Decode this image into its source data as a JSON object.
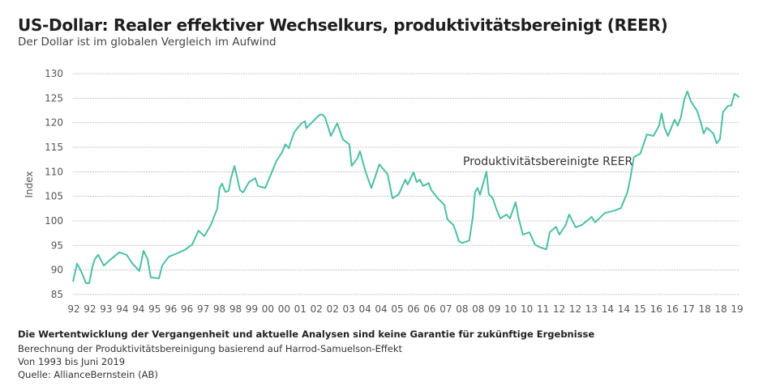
{
  "header": {
    "title": "US-Dollar: Realer effektiver Wechselkurs, produktivitätsbereinigt (REER)",
    "subtitle": "Der Dollar ist im globalen Vergleich im Aufwind"
  },
  "footer": {
    "disclaimer": "Die Wertentwicklung der Vergangenheit und aktuelle Analysen sind keine Garantie für zukünftige Ergebnisse",
    "note1": "Berechnung der Produktivitätsbereinigung basierend auf Harrod-Samuelson-Effekt",
    "note2": "Von 1993 bis Juni 2019",
    "source": "Quelle: AllianceBernstein (AB)"
  },
  "chart_data": {
    "type": "line",
    "title": "",
    "xlabel": "",
    "ylabel": "Index",
    "ylim": [
      85,
      130
    ],
    "yticks": [
      85,
      90,
      95,
      100,
      105,
      110,
      115,
      120,
      125,
      130
    ],
    "xlim": [
      1992.0,
      2019.5
    ],
    "x_tick_labels": [
      "92",
      "92",
      "93",
      "94",
      "94",
      "95",
      "96",
      "96",
      "97",
      "98",
      "98",
      "99",
      "00",
      "00",
      "01",
      "02",
      "02",
      "03",
      "04",
      "04",
      "05",
      "06",
      "06",
      "07",
      "08",
      "08",
      "09",
      "10",
      "10",
      "11",
      "12",
      "12",
      "13",
      "14",
      "14",
      "15",
      "16",
      "16",
      "17",
      "18",
      "18",
      "19"
    ],
    "grid": "horizontal dotted",
    "line_color": "#4cbfa6",
    "series": [
      {
        "name": "Produktivitätsbereinigte REER",
        "x": [
          1992.0,
          1992.17,
          1992.33,
          1992.54,
          1992.67,
          1992.8,
          1992.9,
          1993.04,
          1993.27,
          1993.57,
          1993.91,
          1994.21,
          1994.44,
          1994.74,
          1994.91,
          1995.08,
          1995.21,
          1995.55,
          1995.68,
          1995.95,
          1996.31,
          1996.62,
          1996.92,
          1997.18,
          1997.42,
          1997.69,
          1997.95,
          1998.05,
          1998.15,
          1998.29,
          1998.42,
          1998.52,
          1998.66,
          1998.76,
          1998.89,
          1999.02,
          1999.26,
          1999.52,
          1999.63,
          1999.93,
          2000.16,
          2000.39,
          2000.63,
          2000.76,
          2000.9,
          2001.13,
          2001.43,
          2001.57,
          2001.63,
          2001.93,
          2002.17,
          2002.27,
          2002.4,
          2002.54,
          2002.64,
          2002.9,
          2003.14,
          2003.4,
          2003.5,
          2003.74,
          2003.84,
          2004.07,
          2004.31,
          2004.54,
          2004.64,
          2004.98,
          2005.18,
          2005.44,
          2005.71,
          2005.81,
          2006.05,
          2006.18,
          2006.31,
          2006.45,
          2006.68,
          2006.78,
          2007.05,
          2007.32,
          2007.45,
          2007.69,
          2007.79,
          2007.92,
          2008.05,
          2008.35,
          2008.49,
          2008.59,
          2008.69,
          2008.79,
          2009.06,
          2009.16,
          2009.32,
          2009.46,
          2009.63,
          2009.89,
          2010.03,
          2010.26,
          2010.39,
          2010.56,
          2010.83,
          2011.06,
          2011.23,
          2011.53,
          2011.67,
          2011.93,
          2012.07,
          2012.33,
          2012.47,
          2012.74,
          2013.0,
          2013.4,
          2013.54,
          2013.94,
          2014.34,
          2014.61,
          2014.88,
          2015.01,
          2015.14,
          2015.41,
          2015.68,
          2015.95,
          2016.18,
          2016.28,
          2016.41,
          2016.55,
          2016.82,
          2016.95,
          2017.08,
          2017.22,
          2017.35,
          2017.49,
          2017.75,
          2017.89,
          2018.02,
          2018.15,
          2018.42,
          2018.56,
          2018.69,
          2018.82,
          2019.02,
          2019.16,
          2019.29,
          2019.49
        ],
        "values": [
          87.6,
          91.3,
          89.8,
          87.3,
          87.3,
          90.6,
          92.2,
          93.1,
          90.9,
          92.2,
          93.6,
          93.1,
          91.4,
          89.8,
          93.9,
          92.2,
          88.5,
          88.3,
          90.9,
          92.7,
          93.4,
          94.1,
          95.2,
          98.0,
          96.9,
          99.2,
          102.5,
          106.7,
          107.6,
          105.9,
          106.1,
          108.7,
          111.2,
          109.1,
          106.3,
          105.8,
          107.9,
          108.7,
          107.1,
          106.7,
          109.4,
          112.2,
          114.0,
          115.6,
          114.8,
          118.1,
          119.9,
          120.3,
          118.9,
          120.4,
          121.6,
          121.7,
          121.1,
          118.9,
          117.3,
          119.9,
          116.6,
          115.6,
          111.2,
          112.8,
          114.2,
          110.0,
          106.7,
          110.0,
          111.5,
          109.5,
          104.6,
          105.4,
          108.4,
          107.4,
          109.9,
          107.9,
          108.4,
          107.1,
          107.7,
          106.3,
          104.6,
          103.3,
          100.3,
          99.2,
          97.9,
          95.9,
          95.5,
          96.0,
          100.5,
          105.9,
          106.7,
          105.3,
          110.0,
          105.4,
          104.6,
          102.5,
          100.5,
          101.3,
          100.5,
          103.8,
          100.5,
          97.2,
          97.7,
          95.2,
          94.7,
          94.2,
          97.7,
          98.8,
          97.2,
          99.2,
          101.3,
          98.7,
          99.2,
          100.8,
          99.7,
          101.6,
          102.1,
          102.6,
          105.9,
          109.1,
          113.0,
          113.7,
          117.6,
          117.3,
          119.4,
          121.9,
          118.9,
          117.3,
          120.6,
          119.4,
          121.1,
          124.7,
          126.4,
          124.4,
          122.4,
          120.3,
          117.8,
          119.0,
          117.8,
          115.8,
          116.6,
          122.2,
          123.4,
          123.5,
          125.9,
          125.2
        ]
      }
    ]
  }
}
